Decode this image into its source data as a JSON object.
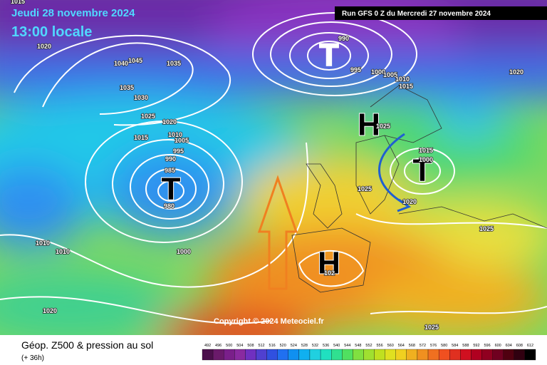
{
  "header": {
    "date": "Jeudi 28 novembre 2024",
    "time": "13:00 locale",
    "run": "Run GFS 0 Z du Mercredi 27 novembre 2024"
  },
  "copyright": "Copyright © 2024 Meteociel.fr",
  "footer": {
    "title": "Géop. Z500 & pression au sol",
    "lead": "(+ 36h)"
  },
  "legend": {
    "values": [
      492,
      496,
      500,
      504,
      508,
      512,
      516,
      520,
      524,
      528,
      532,
      536,
      540,
      544,
      548,
      552,
      556,
      560,
      564,
      568,
      572,
      576,
      580,
      584,
      588,
      592,
      596,
      600,
      604,
      608,
      612
    ],
    "colors": [
      "#4b0f4b",
      "#6a1a6a",
      "#7a1f8a",
      "#8a2aa0",
      "#7030c0",
      "#5040d0",
      "#3050e0",
      "#2070f0",
      "#1090f0",
      "#10b0f0",
      "#20d0e0",
      "#20e0c0",
      "#30e090",
      "#50e060",
      "#80e040",
      "#a0e030",
      "#c0e020",
      "#e0e020",
      "#f0d020",
      "#f0b020",
      "#f09020",
      "#f07020",
      "#f05020",
      "#e03020",
      "#d01020",
      "#b00020",
      "#900020",
      "#700020",
      "#500010",
      "#300010",
      "#000000"
    ]
  },
  "pressure_systems": [
    "T",
    "T",
    "T",
    "H",
    "H"
  ],
  "isobar_labels": [
    "1015",
    "1020",
    "1045",
    "1040",
    "1035",
    "1035",
    "1030",
    "1025",
    "1020",
    "1015",
    "1010",
    "1005",
    "995",
    "990",
    "985",
    "980",
    "1010",
    "1010",
    "1000",
    "1020",
    "990",
    "995",
    "1000",
    "1005",
    "1010",
    "1015",
    "1020",
    "1025",
    "1015",
    "1000",
    "1025",
    "1020",
    "1025",
    "1025",
    "102"
  ]
}
